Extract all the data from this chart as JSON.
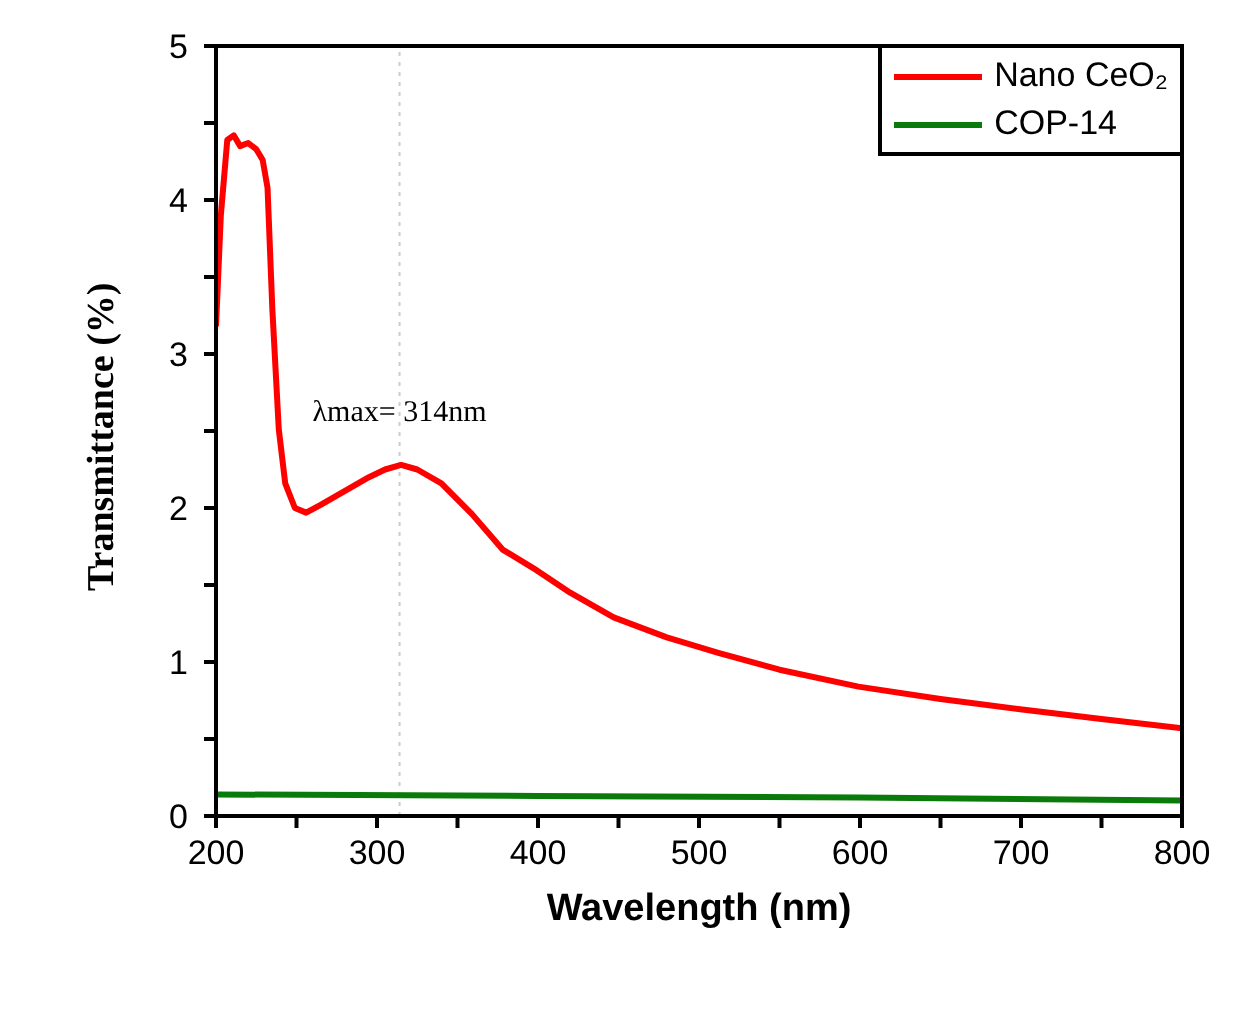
{
  "chart_data": {
    "type": "line",
    "xlabel": "Wavelength (nm)",
    "ylabel": "Transmittance (%)",
    "xlim": [
      200,
      800
    ],
    "ylim": [
      0,
      5
    ],
    "xticks": [
      200,
      {
        "value": 250,
        "label": null
      },
      300,
      {
        "value": 350,
        "label": null
      },
      400,
      {
        "value": 450,
        "label": null
      },
      500,
      {
        "value": 550,
        "label": null
      },
      600,
      {
        "value": 650,
        "label": null
      },
      700,
      {
        "value": 750,
        "label": null
      },
      800
    ],
    "yticks": [
      0,
      {
        "value": 0.5,
        "label": null
      },
      1,
      {
        "value": 1.5,
        "label": null
      },
      2,
      {
        "value": 2.5,
        "label": null
      },
      3,
      {
        "value": 3.5,
        "label": null
      },
      4,
      {
        "value": 4.5,
        "label": null
      },
      5
    ],
    "legend": "top right",
    "marker": "none",
    "line_style": "solid",
    "series": [
      {
        "name": "Nano CeO₂",
        "color": "#ff0000",
        "x": [
          200,
          203,
          207,
          211,
          215,
          220,
          225,
          229,
          232,
          235,
          239,
          243,
          249,
          256,
          265,
          275,
          285,
          295,
          305,
          315,
          325,
          340,
          359,
          378,
          397,
          420,
          447,
          480,
          512,
          550,
          599,
          650,
          702,
          750,
          800
        ],
        "values": [
          3.18,
          3.9,
          4.39,
          4.42,
          4.35,
          4.37,
          4.33,
          4.26,
          4.08,
          3.29,
          2.51,
          2.16,
          2.0,
          1.97,
          2.02,
          2.08,
          2.14,
          2.2,
          2.25,
          2.28,
          2.25,
          2.16,
          1.96,
          1.73,
          1.61,
          1.45,
          1.29,
          1.16,
          1.06,
          0.95,
          0.84,
          0.76,
          0.69,
          0.63,
          0.57
        ]
      },
      {
        "name": "COP-14",
        "color": "#0a7a0a",
        "x": [
          200,
          400,
          600,
          800
        ],
        "values": [
          0.14,
          0.13,
          0.12,
          0.1
        ]
      }
    ],
    "ref_lines": [
      {
        "axis": "x",
        "value": 314,
        "color": "#cccccc",
        "line_style": "dotted"
      }
    ],
    "annotations": [
      {
        "text": "λmax= 314nm",
        "x": 314,
        "y": 2.28
      }
    ]
  }
}
